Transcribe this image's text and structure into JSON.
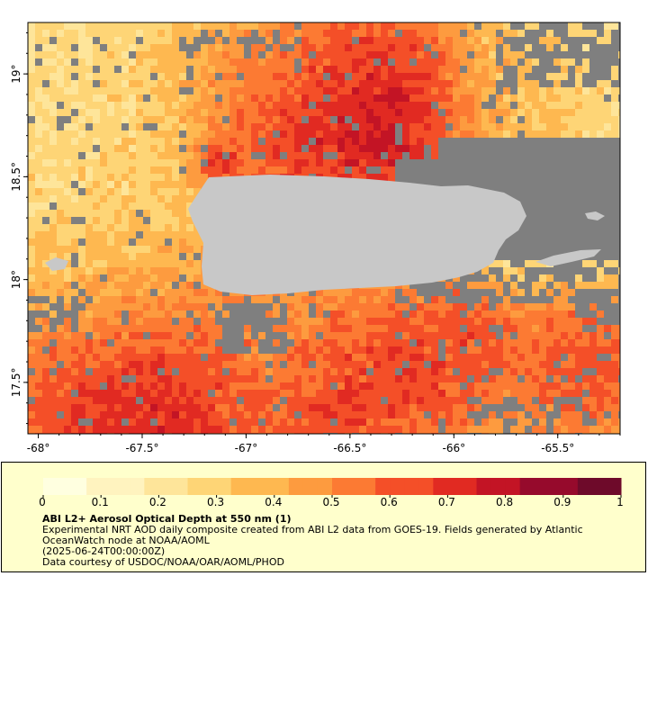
{
  "map": {
    "type": "geographic-raster",
    "lon_range": [
      -68.05,
      -65.2
    ],
    "lat_range": [
      17.25,
      19.25
    ],
    "x_ticks": [
      "-68°",
      "-67.5°",
      "-67°",
      "-66.5°",
      "-66°",
      "-65.5°"
    ],
    "x_tick_values": [
      -68,
      -67.5,
      -67,
      -66.5,
      -66,
      -65.5
    ],
    "y_ticks": [
      "19°",
      "18.5°",
      "18°",
      "17.5°"
    ],
    "y_tick_values": [
      19,
      18.5,
      18,
      17.5
    ],
    "colors": {
      "no_data": "#7f7f7f",
      "land": "#c8c8c8",
      "legend_background": "#ffffcc"
    }
  },
  "colorbar": {
    "min": 0,
    "max": 1,
    "tick_labels": [
      "0",
      "0.1",
      "0.2",
      "0.3",
      "0.4",
      "0.5",
      "0.6",
      "0.7",
      "0.8",
      "0.9",
      "1"
    ],
    "colors": [
      "#ffffe0",
      "#fff3bf",
      "#fee59a",
      "#fed576",
      "#feb850",
      "#fd9b3f",
      "#fc7a33",
      "#f44f28",
      "#e12a22",
      "#c31425",
      "#960a2c",
      "#6e0a2a"
    ]
  },
  "legend": {
    "title": "ABI L2+ Aerosol Optical Depth at 550 nm (1)",
    "line1": "Experimental NRT AOD daily composite created from ABI L2 data from GOES-19. Fields generated by Atlantic",
    "line2": "OceanWatch node at NOAA/AOML",
    "line3": "(2025-06-24T00:00:00Z)",
    "line4": "Data courtesy of USDOC/NOAA/OAR/AOML/PHOD"
  }
}
